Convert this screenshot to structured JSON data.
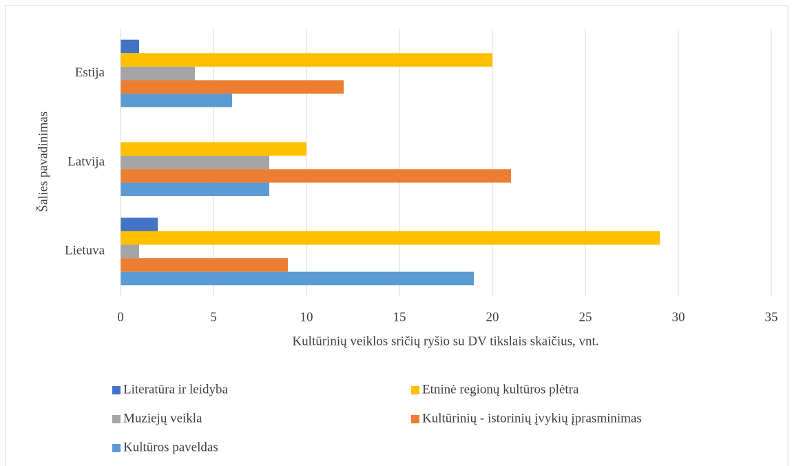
{
  "chart_data": {
    "type": "bar",
    "orientation": "horizontal",
    "xlabel": "Kultūrinių veiklos sričių ryšio su DV tikslais skaičius, vnt.",
    "ylabel": "Šalies pavadinimas",
    "categories": [
      "Lietuva",
      "Latvija",
      "Estija"
    ],
    "series": [
      {
        "name": "Literatūra ir leidyba",
        "color": "#4472c4",
        "values": [
          2,
          0,
          1
        ]
      },
      {
        "name": "Etninė regionų kultūros plėtra",
        "color": "#ffc000",
        "values": [
          29,
          10,
          20
        ]
      },
      {
        "name": "Muziejų veikla",
        "color": "#a5a5a5",
        "values": [
          1,
          8,
          4
        ]
      },
      {
        "name": "Kultūrinių - istorinių įvykių įprasminimas",
        "color": "#ed7d31",
        "values": [
          9,
          21,
          12
        ]
      },
      {
        "name": "Kultūros paveldas",
        "color": "#5b9bd5",
        "values": [
          19,
          8,
          6
        ]
      }
    ],
    "xlim": [
      0,
      35
    ],
    "xticks": [
      0,
      5,
      10,
      15,
      20,
      25,
      30,
      35
    ],
    "grid": true,
    "legend": "bottom"
  }
}
